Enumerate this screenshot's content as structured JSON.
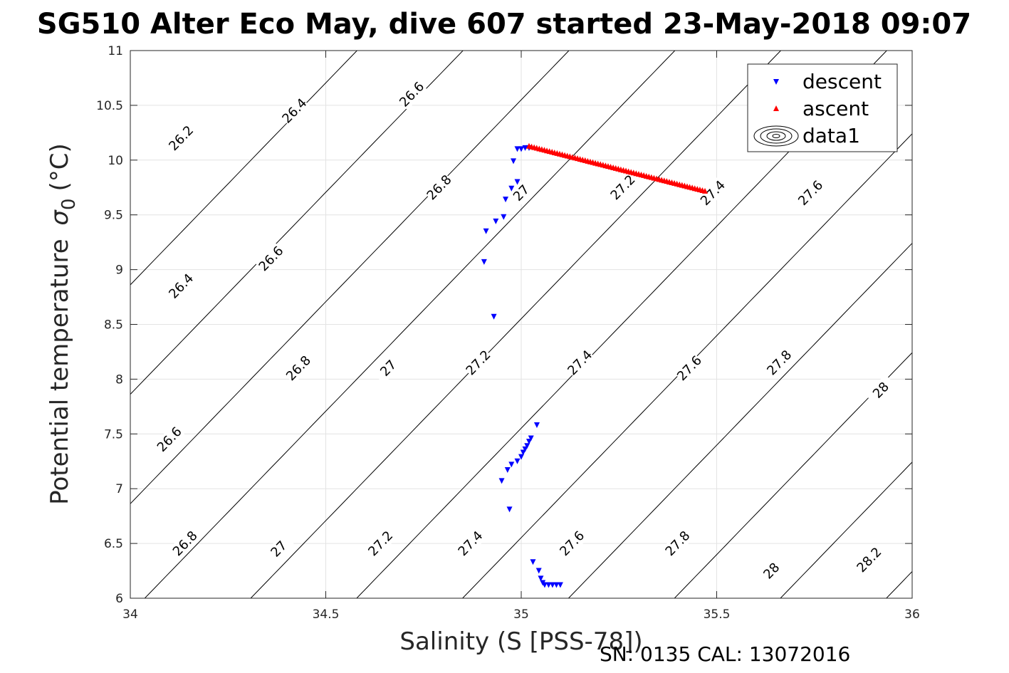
{
  "chart_data": {
    "type": "scatter",
    "title": "SG510 Alter Eco May, dive 607 started 23-May-2018 09:07",
    "xlabel": "Salinity (S [PSS-78])",
    "ylabel": "Potential temperature",
    "ylabel_symbol": "σ",
    "ylabel_subscript": "0",
    "ylabel_unit": "(°C)",
    "footer": "SN: 0135  CAL: 13072016",
    "xlim": [
      34,
      36
    ],
    "ylim": [
      6,
      11
    ],
    "xticks": [
      34,
      34.5,
      35,
      35.5,
      36
    ],
    "xtick_labels": [
      "34",
      "34.5",
      "35",
      "35.5",
      "36"
    ],
    "yticks": [
      6,
      6.5,
      7,
      7.5,
      8,
      8.5,
      9,
      9.5,
      10,
      10.5,
      11
    ],
    "ytick_labels": [
      "6",
      "6.5",
      "7",
      "7.5",
      "8",
      "8.5",
      "9",
      "9.5",
      "10",
      "10.5",
      "11"
    ],
    "grid": true,
    "legend_position": "top-right",
    "legend": [
      {
        "name": "descent",
        "marker": "triangle-down",
        "color": "#0000ff"
      },
      {
        "name": "ascent",
        "marker": "triangle-up",
        "color": "#ff0000"
      },
      {
        "name": "data1",
        "marker": "contour",
        "color": "#000000"
      }
    ],
    "series": [
      {
        "name": "descent",
        "color": "#0000ff",
        "x": [
          35.02,
          35.01,
          35.0,
          34.99,
          34.98,
          34.99,
          34.975,
          34.96,
          34.955,
          34.935,
          34.91,
          34.905,
          34.93,
          35.04,
          35.025,
          35.02,
          35.015,
          35.01,
          35.005,
          35.0,
          34.99,
          34.975,
          34.965,
          34.95,
          34.97,
          35.03,
          35.045,
          35.05,
          35.055,
          35.06,
          35.07,
          35.08,
          35.09,
          35.1
        ],
        "y": [
          10.11,
          10.11,
          10.1,
          10.1,
          9.99,
          9.8,
          9.74,
          9.64,
          9.48,
          9.44,
          9.35,
          9.07,
          8.57,
          7.58,
          7.46,
          7.43,
          7.39,
          7.36,
          7.33,
          7.29,
          7.25,
          7.22,
          7.17,
          7.07,
          6.81,
          6.33,
          6.25,
          6.18,
          6.14,
          6.12,
          6.12,
          6.12,
          6.12,
          6.12
        ]
      },
      {
        "name": "ascent",
        "color": "#ff0000",
        "x_start": 35.02,
        "y_start": 10.13,
        "x_end": 35.47,
        "y_end": 9.72,
        "count": 70
      }
    ],
    "contours": [
      {
        "level": "26.2",
        "labels": [
          [
            34.13,
            10.2
          ]
        ]
      },
      {
        "level": "26.4",
        "labels": [
          [
            34.13,
            8.85
          ],
          [
            34.42,
            10.45
          ]
        ]
      },
      {
        "level": "26.6",
        "labels": [
          [
            34.1,
            7.45
          ],
          [
            34.36,
            9.1
          ],
          [
            34.72,
            10.6
          ]
        ]
      },
      {
        "level": "26.8",
        "labels": [
          [
            34.14,
            6.5
          ],
          [
            34.43,
            8.1
          ],
          [
            34.79,
            9.75
          ]
        ]
      },
      {
        "level": "27",
        "labels": [
          [
            34.38,
            6.45
          ],
          [
            34.66,
            8.1
          ],
          [
            35.0,
            9.7
          ]
        ]
      },
      {
        "level": "27.2",
        "labels": [
          [
            34.64,
            6.5
          ],
          [
            34.89,
            8.15
          ],
          [
            35.26,
            9.75
          ]
        ]
      },
      {
        "level": "27.4",
        "labels": [
          [
            34.87,
            6.5
          ],
          [
            35.15,
            8.15
          ],
          [
            35.49,
            9.7
          ]
        ]
      },
      {
        "level": "27.6",
        "labels": [
          [
            35.13,
            6.5
          ],
          [
            35.43,
            8.1
          ],
          [
            35.74,
            9.7
          ]
        ]
      },
      {
        "level": "27.8",
        "labels": [
          [
            35.4,
            6.5
          ],
          [
            35.66,
            8.15
          ]
        ]
      },
      {
        "level": "28",
        "labels": [
          [
            35.64,
            6.25
          ],
          [
            35.92,
            7.9
          ]
        ]
      },
      {
        "level": "28.2",
        "labels": [
          [
            35.89,
            6.35
          ]
        ]
      }
    ]
  }
}
